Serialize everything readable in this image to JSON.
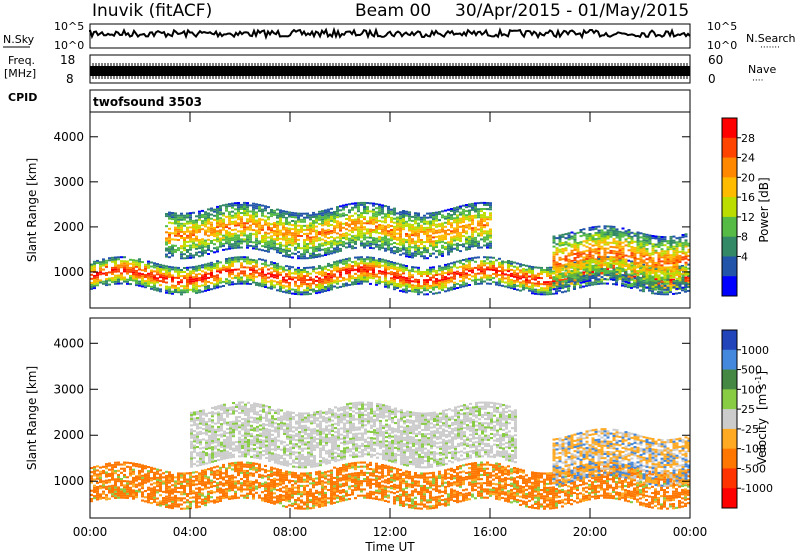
{
  "header": {
    "station": "Inuvik (fitACF)",
    "beam": "Beam 00",
    "date_range": "30/Apr/2015 - 01/May/2015"
  },
  "top_panels": {
    "nsky_label": "N.Sky",
    "nsky_ticks": [
      "10^5",
      "10^0"
    ],
    "nsearch_label": "N.Search",
    "nsearch_ticks": [
      "10^5",
      "10^0"
    ],
    "freq_label_1": "Freq.",
    "freq_label_2": "[MHz]",
    "freq_ticks": [
      "18",
      "8"
    ],
    "nave_label": "Nave",
    "nave_ticks": [
      "60",
      "0"
    ],
    "cpid_label": "CPID",
    "cpid_value": "twofsound 3503"
  },
  "chart_data": [
    {
      "type": "heatmap",
      "ylabel": "Slant Range [km]",
      "y_ticks": [
        "4000",
        "3000",
        "2000",
        "1000"
      ],
      "ylim": [
        200,
        4550
      ],
      "colorbar_label": "Power [dB]",
      "colorbar_ticks": [
        "28",
        "24",
        "20",
        "16",
        "12",
        "8",
        "4"
      ],
      "colorbar_colors": [
        "#ff0000",
        "#ff4400",
        "#ff8800",
        "#ffbb00",
        "#bbdd00",
        "#55bb44",
        "#338866",
        "#2255aa",
        "#0000ff"
      ],
      "echo_bands_km": [
        {
          "start_hour": 0,
          "end_hour": 24,
          "range_km": 900,
          "width_km": 300,
          "level": 0.9
        },
        {
          "start_hour": 3,
          "end_hour": 16,
          "range_km": 1900,
          "width_km": 500,
          "level": 0.65
        },
        {
          "start_hour": 18.5,
          "end_hour": 24,
          "range_km": 1300,
          "width_km": 600,
          "level": 0.7
        }
      ]
    },
    {
      "type": "heatmap",
      "ylabel": "Slant Range [km]",
      "y_ticks": [
        "4000",
        "3000",
        "2000",
        "1000"
      ],
      "ylim": [
        200,
        4550
      ],
      "xlabel": "Time UT",
      "x_ticks": [
        "00:00",
        "04:00",
        "08:00",
        "12:00",
        "16:00",
        "20:00",
        "00:00"
      ],
      "colorbar_label_1": "Velocity",
      "colorbar_label_2": "[m s",
      "colorbar_label_sup": "-1",
      "colorbar_label_3": "]",
      "colorbar_ticks": [
        "1000",
        "500",
        "100",
        "25",
        "-25",
        "-100",
        "-500",
        "-1000"
      ],
      "colorbar_colors": [
        "#2244bb",
        "#4488dd",
        "#448844",
        "#88cc44",
        "#cccccc",
        "#ffaa22",
        "#ff7700",
        "#ff3300",
        "#ff0000"
      ],
      "echo_bands_km": [
        {
          "start_hour": 0,
          "end_hour": 24,
          "range_km": 900,
          "width_km": 400,
          "level": -300
        },
        {
          "start_hour": 4,
          "end_hour": 17,
          "range_km": 2000,
          "width_km": 600,
          "level": 0
        },
        {
          "start_hour": 18.5,
          "end_hour": 24,
          "range_km": 1500,
          "width_km": 500,
          "level": -60
        }
      ]
    }
  ]
}
